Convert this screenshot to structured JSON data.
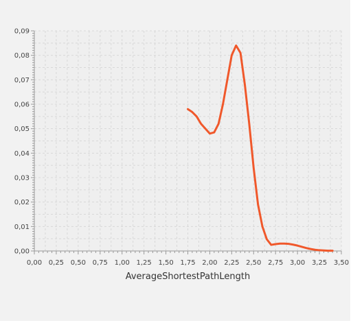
{
  "chart_data": {
    "type": "line",
    "title": "",
    "xlabel": "AverageShortestPathLength",
    "ylabel": "",
    "xlim": [
      0,
      3.5
    ],
    "ylim": [
      0,
      0.09
    ],
    "x_ticks": [
      0,
      0.25,
      0.5,
      0.75,
      1.0,
      1.25,
      1.5,
      1.75,
      2.0,
      2.25,
      2.5,
      2.75,
      3.0,
      3.25,
      3.5
    ],
    "x_tick_labels": [
      "0,00",
      "0,25",
      "0,50",
      "0,75",
      "1,00",
      "1,25",
      "1,50",
      "1,75",
      "2,00",
      "2,25",
      "2,50",
      "2,75",
      "3,00",
      "3,25",
      "3,50"
    ],
    "y_ticks": [
      0,
      0.01,
      0.02,
      0.03,
      0.04,
      0.05,
      0.06,
      0.07,
      0.08,
      0.09
    ],
    "y_tick_labels": [
      "0,00",
      "0,01",
      "0,02",
      "0,03",
      "0,04",
      "0,05",
      "0,06",
      "0,07",
      "0,08",
      "0,09"
    ],
    "grid": true,
    "legend": "none",
    "colors": {
      "series": "#f0582b",
      "plot_background": "#efefef",
      "grid": "#d8d8d8",
      "panel": "#f2f2f2"
    },
    "series": [
      {
        "x": [
          1.75,
          1.8,
          1.85,
          1.9,
          1.95,
          2.0,
          2.05,
          2.1,
          2.15,
          2.2,
          2.25,
          2.3,
          2.35,
          2.4,
          2.45,
          2.5,
          2.55,
          2.6,
          2.65,
          2.7,
          2.75,
          2.8,
          2.85,
          2.9,
          2.95,
          3.0,
          3.05,
          3.1,
          3.15,
          3.2,
          3.25,
          3.3,
          3.35,
          3.4
        ],
        "y": [
          0.058,
          0.0568,
          0.055,
          0.052,
          0.05,
          0.048,
          0.0485,
          0.052,
          0.06,
          0.07,
          0.08,
          0.084,
          0.081,
          0.068,
          0.052,
          0.034,
          0.019,
          0.01,
          0.0048,
          0.0025,
          0.0028,
          0.003,
          0.003,
          0.0029,
          0.0026,
          0.0022,
          0.0017,
          0.0012,
          0.0008,
          0.0005,
          0.0003,
          0.0002,
          0.0001,
          0.0001
        ]
      }
    ]
  }
}
